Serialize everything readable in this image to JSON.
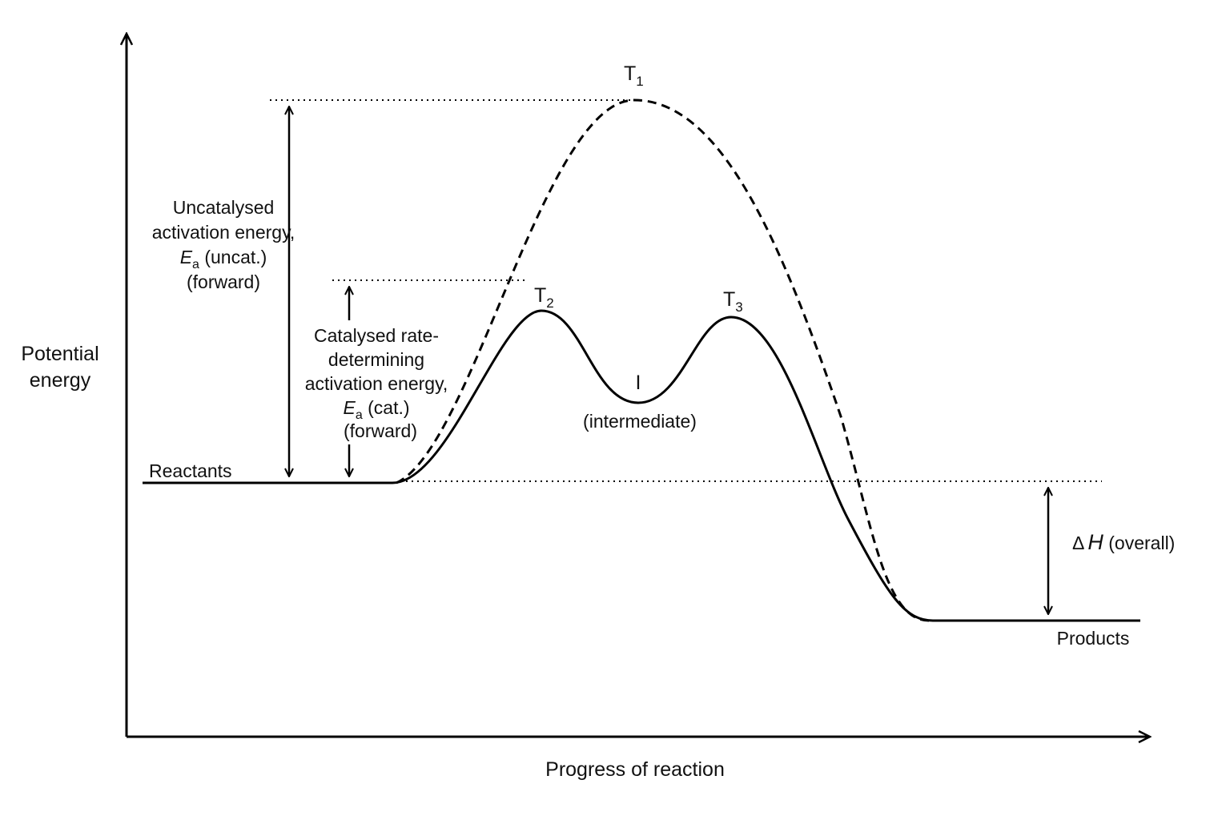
{
  "axes": {
    "y_label_line1": "Potential",
    "y_label_line2": "energy",
    "x_label": "Progress of reaction"
  },
  "states": {
    "reactants": "Reactants",
    "products": "Products",
    "t1": "T",
    "t1_sub": "1",
    "t2": "T",
    "t2_sub": "2",
    "t3": "T",
    "t3_sub": "3",
    "intermediate": "I",
    "intermediate_desc": "(intermediate)"
  },
  "annotations": {
    "uncat_line1": "Uncatalysed",
    "uncat_line2": "activation energy,",
    "uncat_E": "E",
    "uncat_sub": "a",
    "uncat_rest": " (uncat.)",
    "uncat_line4": "(forward)",
    "cat_line1": "Catalysed rate-",
    "cat_line2": "determining",
    "cat_line3": "activation energy,",
    "cat_E": "E",
    "cat_sub": "a",
    "cat_rest": " (cat.)",
    "cat_line5": "(forward)",
    "dh_delta": "Δ",
    "dh_H": "H",
    "dh_rest": " (overall)"
  },
  "colors": {
    "ink": "#000000",
    "background": "#ffffff"
  }
}
